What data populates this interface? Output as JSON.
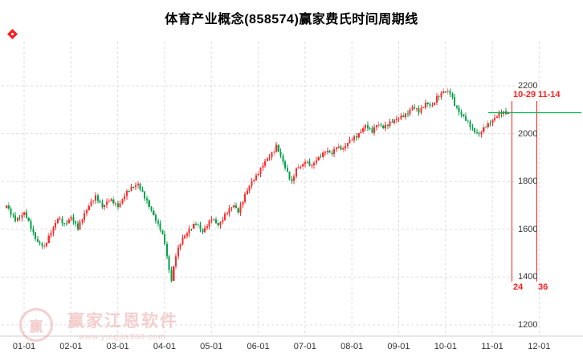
{
  "title": "体育产业概念(858574)赢家费氏时间周期线",
  "colors": {
    "up": "#fe2b2b",
    "down": "#00a248",
    "grid": "#dcdcdc",
    "axis_separator": "#cfcfcf",
    "annotation": "#ff1e1e",
    "last_price_line": "#00b050",
    "axis_text": "#333333",
    "watermark": "#eda9a9"
  },
  "axes": {
    "y_ticks": [
      "2200",
      "2000",
      "1800",
      "1600",
      "1400",
      "1200"
    ],
    "x_ticks": [
      "01-01",
      "02-01",
      "03-01",
      "04-01",
      "05-01",
      "06-01",
      "07-01",
      "08-01",
      "09-01",
      "10-01",
      "11-01",
      "12-01"
    ]
  },
  "annotations": {
    "cycle_labels_top": [
      "10-29",
      "11-14"
    ],
    "cycle_labels_bottom": [
      "24",
      "36"
    ],
    "last_price": 2090
  },
  "watermark": {
    "logo_char": "赢",
    "name": "赢家江恩软件",
    "url": "www.yingjia360.com"
  },
  "chart_data": {
    "type": "candlestick",
    "title": "体育产业概念(858574)赢家费氏时间周期线",
    "ylim": [
      1200,
      2200
    ],
    "x_tick_dates": [
      "01-01",
      "02-01",
      "03-01",
      "04-01",
      "05-01",
      "06-01",
      "07-01",
      "08-01",
      "09-01",
      "10-01",
      "11-01",
      "12-01"
    ],
    "n_candles": 226,
    "last_close": 2090,
    "anchors": [
      [
        0,
        1700
      ],
      [
        2,
        1662
      ],
      [
        4,
        1640
      ],
      [
        8,
        1668
      ],
      [
        12,
        1585
      ],
      [
        14,
        1548
      ],
      [
        17,
        1522
      ],
      [
        20,
        1592
      ],
      [
        23,
        1645
      ],
      [
        26,
        1618
      ],
      [
        29,
        1655
      ],
      [
        32,
        1600
      ],
      [
        35,
        1666
      ],
      [
        37,
        1702
      ],
      [
        40,
        1732
      ],
      [
        43,
        1698
      ],
      [
        46,
        1722
      ],
      [
        50,
        1698
      ],
      [
        53,
        1742
      ],
      [
        57,
        1780
      ],
      [
        59,
        1792
      ],
      [
        62,
        1730
      ],
      [
        66,
        1662
      ],
      [
        69,
        1600
      ],
      [
        71,
        1540
      ],
      [
        73,
        1432
      ],
      [
        74,
        1392
      ],
      [
        76,
        1492
      ],
      [
        79,
        1560
      ],
      [
        82,
        1602
      ],
      [
        85,
        1622
      ],
      [
        88,
        1592
      ],
      [
        90,
        1620
      ],
      [
        92,
        1642
      ],
      [
        95,
        1618
      ],
      [
        98,
        1660
      ],
      [
        102,
        1700
      ],
      [
        104,
        1678
      ],
      [
        107,
        1740
      ],
      [
        110,
        1800
      ],
      [
        113,
        1838
      ],
      [
        116,
        1880
      ],
      [
        119,
        1920
      ],
      [
        121,
        1948
      ],
      [
        124,
        1880
      ],
      [
        126,
        1840
      ],
      [
        128,
        1800
      ],
      [
        130,
        1848
      ],
      [
        133,
        1870
      ],
      [
        134,
        1890
      ],
      [
        137,
        1862
      ],
      [
        140,
        1900
      ],
      [
        143,
        1930
      ],
      [
        146,
        1912
      ],
      [
        148,
        1948
      ],
      [
        151,
        1938
      ],
      [
        155,
        1978
      ],
      [
        158,
        2000
      ],
      [
        161,
        2030
      ],
      [
        164,
        2012
      ],
      [
        166,
        2040
      ],
      [
        169,
        2022
      ],
      [
        172,
        2050
      ],
      [
        176,
        2062
      ],
      [
        179,
        2082
      ],
      [
        182,
        2110
      ],
      [
        185,
        2092
      ],
      [
        188,
        2130
      ],
      [
        191,
        2112
      ],
      [
        193,
        2150
      ],
      [
        196,
        2180
      ],
      [
        199,
        2168
      ],
      [
        201,
        2122
      ],
      [
        204,
        2082
      ],
      [
        207,
        2042
      ],
      [
        210,
        2012
      ],
      [
        212,
        1996
      ],
      [
        215,
        2030
      ],
      [
        218,
        2060
      ],
      [
        221,
        2080
      ],
      [
        223,
        2088
      ],
      [
        225,
        2090
      ]
    ],
    "fib_time_lines": [
      {
        "date": "10-29",
        "count": 24
      },
      {
        "date": "11-14",
        "count": 36
      }
    ]
  }
}
